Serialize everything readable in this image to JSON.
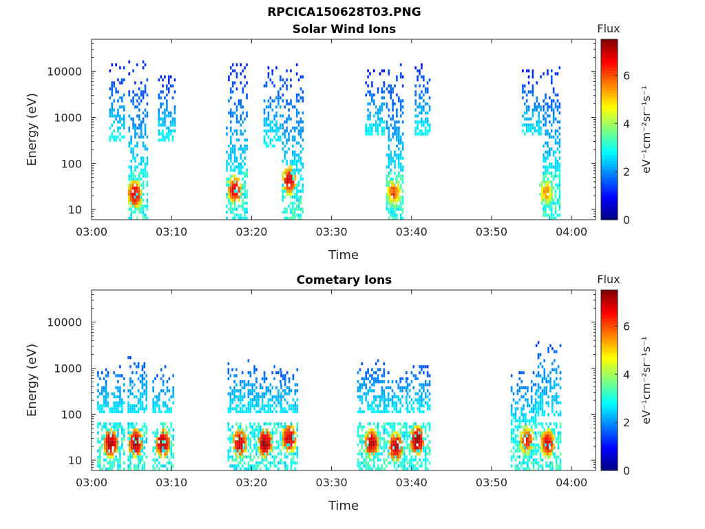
{
  "figure_title": "RPCICA150628T03.PNG",
  "colors": {
    "axis": "#262626",
    "background": "#ffffff"
  },
  "chart_data": [
    {
      "type": "heatmap",
      "title": "Solar Wind Ions",
      "xlabel": "Time",
      "ylabel": "Energy (eV)",
      "x_ticks": [
        "03:00",
        "03:10",
        "03:20",
        "03:30",
        "03:40",
        "03:50",
        "04:00"
      ],
      "x_range_minutes": [
        0,
        63
      ],
      "y_scale": "log",
      "y_ticks": [
        "10",
        "100",
        "1000",
        "10000"
      ],
      "y_range": [
        6,
        50000
      ],
      "colorbar": {
        "label": "Flux",
        "unit_label": "eV⁻¹cm⁻²sr⁻¹s⁻¹",
        "ticks": [
          "0",
          "2",
          "4",
          "6"
        ],
        "range": [
          0,
          7.5
        ],
        "colormap": "jet"
      },
      "bursts": [
        {
          "t0": 2.2,
          "t1": 4.2,
          "emin": 300,
          "emax": 17000,
          "fmin": 1.0,
          "fmax": 2.8,
          "low": false
        },
        {
          "t0": 4.6,
          "t1": 7.0,
          "emin": 30,
          "emax": 16000,
          "fmin": 1.2,
          "fmax": 2.8,
          "low": true
        },
        {
          "t0": 8.3,
          "t1": 10.4,
          "emin": 300,
          "emax": 11000,
          "fmin": 1.0,
          "fmax": 2.8,
          "low": false
        },
        {
          "t0": 16.8,
          "t1": 19.4,
          "emin": 30,
          "emax": 15000,
          "fmin": 1.2,
          "fmax": 2.8,
          "low": true
        },
        {
          "t0": 21.5,
          "t1": 23.6,
          "emin": 200,
          "emax": 12000,
          "fmin": 1.2,
          "fmax": 2.8,
          "low": false
        },
        {
          "t0": 23.8,
          "t1": 26.4,
          "emin": 30,
          "emax": 14000,
          "fmin": 1.2,
          "fmax": 2.8,
          "low": true
        },
        {
          "t0": 34.2,
          "t1": 36.6,
          "emin": 400,
          "emax": 11000,
          "fmin": 1.0,
          "fmax": 2.8,
          "low": false
        },
        {
          "t0": 36.8,
          "t1": 39.0,
          "emin": 30,
          "emax": 16000,
          "fmin": 1.2,
          "fmax": 2.8,
          "low": true
        },
        {
          "t0": 40.4,
          "t1": 42.4,
          "emin": 400,
          "emax": 17000,
          "fmin": 1.0,
          "fmax": 2.8,
          "low": false
        },
        {
          "t0": 53.8,
          "t1": 56.3,
          "emin": 350,
          "emax": 11000,
          "fmin": 1.0,
          "fmax": 2.8,
          "low": false
        },
        {
          "t0": 56.4,
          "t1": 58.6,
          "emin": 30,
          "emax": 15000,
          "fmin": 1.2,
          "fmax": 2.8,
          "low": true
        }
      ],
      "hot_spots": [
        {
          "t": 5.3,
          "e": 20,
          "peak": 6.8
        },
        {
          "t": 17.8,
          "e": 25,
          "peak": 6.8
        },
        {
          "t": 24.6,
          "e": 40,
          "peak": 6.8
        },
        {
          "t": 37.7,
          "e": 22,
          "peak": 6.0
        },
        {
          "t": 56.7,
          "e": 22,
          "peak": 5.5
        }
      ]
    },
    {
      "type": "heatmap",
      "title": "Cometary Ions",
      "xlabel": "Time",
      "ylabel": "Energy (eV)",
      "x_ticks": [
        "03:00",
        "03:10",
        "03:20",
        "03:30",
        "03:40",
        "03:50",
        "04:00"
      ],
      "x_range_minutes": [
        0,
        63
      ],
      "y_scale": "log",
      "y_ticks": [
        "10",
        "100",
        "1000",
        "10000"
      ],
      "y_range": [
        6,
        50000
      ],
      "colorbar": {
        "label": "Flux",
        "unit_label": "eV⁻¹cm⁻²sr⁻¹s⁻¹",
        "ticks": [
          "0",
          "2",
          "4",
          "6"
        ],
        "range": [
          0,
          7.5
        ],
        "colormap": "jet"
      },
      "bursts": [
        {
          "t0": 0.7,
          "t1": 4.2,
          "emin": 100,
          "emax": 1100,
          "fmin": 1.5,
          "fmax": 2.7,
          "low": true
        },
        {
          "t0": 4.5,
          "t1": 6.8,
          "emin": 100,
          "emax": 1800,
          "fmin": 1.5,
          "fmax": 2.7,
          "low": true
        },
        {
          "t0": 7.6,
          "t1": 10.3,
          "emin": 100,
          "emax": 1000,
          "fmin": 1.5,
          "fmax": 2.7,
          "low": true
        },
        {
          "t0": 17.0,
          "t1": 20.0,
          "emin": 100,
          "emax": 1500,
          "fmin": 1.5,
          "fmax": 2.7,
          "low": true
        },
        {
          "t0": 20.0,
          "t1": 23.6,
          "emin": 100,
          "emax": 1100,
          "fmin": 1.5,
          "fmax": 2.7,
          "low": true
        },
        {
          "t0": 23.6,
          "t1": 25.8,
          "emin": 100,
          "emax": 900,
          "fmin": 1.5,
          "fmax": 2.7,
          "low": true
        },
        {
          "t0": 33.2,
          "t1": 36.5,
          "emin": 100,
          "emax": 1500,
          "fmin": 1.5,
          "fmax": 2.7,
          "low": true
        },
        {
          "t0": 36.5,
          "t1": 39.4,
          "emin": 100,
          "emax": 900,
          "fmin": 1.5,
          "fmax": 2.7,
          "low": true
        },
        {
          "t0": 39.4,
          "t1": 42.4,
          "emin": 100,
          "emax": 1100,
          "fmin": 1.5,
          "fmax": 2.7,
          "low": true
        },
        {
          "t0": 52.4,
          "t1": 55.5,
          "emin": 60,
          "emax": 900,
          "fmin": 1.5,
          "fmax": 2.7,
          "low": true
        },
        {
          "t0": 55.5,
          "t1": 58.6,
          "emin": 80,
          "emax": 3600,
          "fmin": 1.5,
          "fmax": 2.7,
          "low": true
        }
      ],
      "hot_spots": [
        {
          "t": 2.3,
          "e": 22,
          "peak": 7.2
        },
        {
          "t": 5.4,
          "e": 22,
          "peak": 7.2
        },
        {
          "t": 8.8,
          "e": 22,
          "peak": 7.2
        },
        {
          "t": 18.4,
          "e": 22,
          "peak": 7.0
        },
        {
          "t": 21.6,
          "e": 22,
          "peak": 7.3
        },
        {
          "t": 24.6,
          "e": 28,
          "peak": 7.0
        },
        {
          "t": 34.9,
          "e": 22,
          "peak": 7.0
        },
        {
          "t": 37.9,
          "e": 18,
          "peak": 7.0
        },
        {
          "t": 40.6,
          "e": 25,
          "peak": 7.3
        },
        {
          "t": 54.3,
          "e": 25,
          "peak": 6.5
        },
        {
          "t": 56.9,
          "e": 22,
          "peak": 6.8
        }
      ]
    }
  ]
}
